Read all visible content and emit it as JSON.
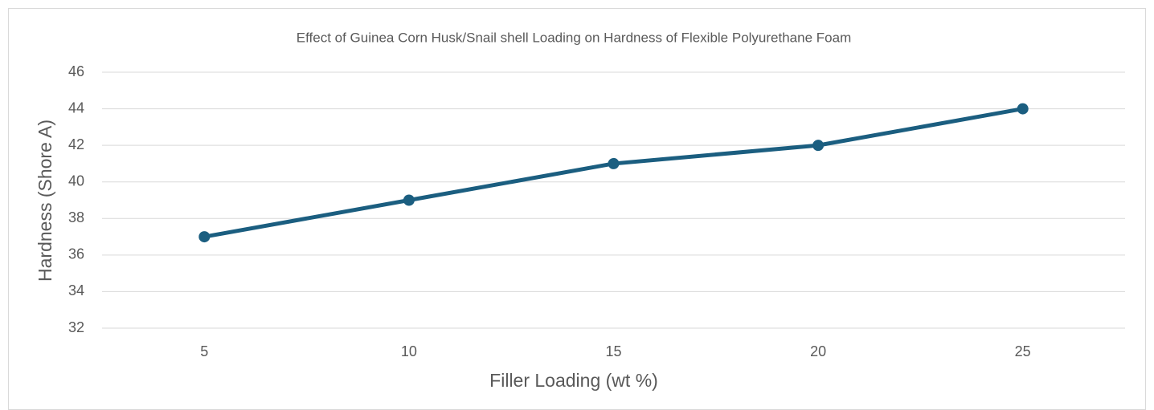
{
  "chart_data": {
    "type": "line",
    "title": "Effect of Guinea Corn Husk/Snail shell Loading on Hardness of Flexible Polyurethane Foam",
    "x_label": "Filler Loading (wt %)",
    "y_label": "Hardness (Shore A)",
    "categories": [
      "5",
      "10",
      "15",
      "20",
      "25"
    ],
    "series": [
      {
        "name": "Hardness",
        "color": "#1b5e80",
        "values": [
          37,
          39,
          41,
          42,
          44
        ]
      }
    ],
    "ylim": [
      32,
      46
    ],
    "yticks": [
      32,
      34,
      36,
      38,
      40,
      42,
      44,
      46
    ],
    "grid": true
  }
}
